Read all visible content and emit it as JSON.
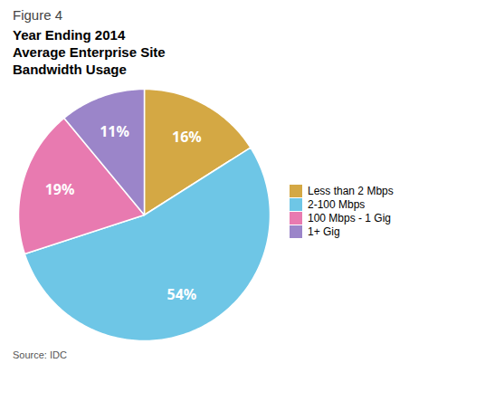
{
  "chart_data": {
    "type": "pie",
    "title": "Year Ending 2014\nAverage Enterprise Site\nBandwidth Usage",
    "annotations": [
      "Figure 4"
    ],
    "caption": "Source: IDC",
    "categories": [
      "Less than 2 Mbps",
      "2-100 Mbps",
      "100 Mbps - 1 Gig",
      "1+ Gig"
    ],
    "values": [
      16,
      54,
      19,
      11
    ],
    "value_labels": [
      "16%",
      "54%",
      "19%",
      "11%"
    ],
    "colors": [
      "#D4A844",
      "#6EC6E6",
      "#E87AB0",
      "#9B85C9"
    ],
    "data_labels": true,
    "legend": "right"
  }
}
